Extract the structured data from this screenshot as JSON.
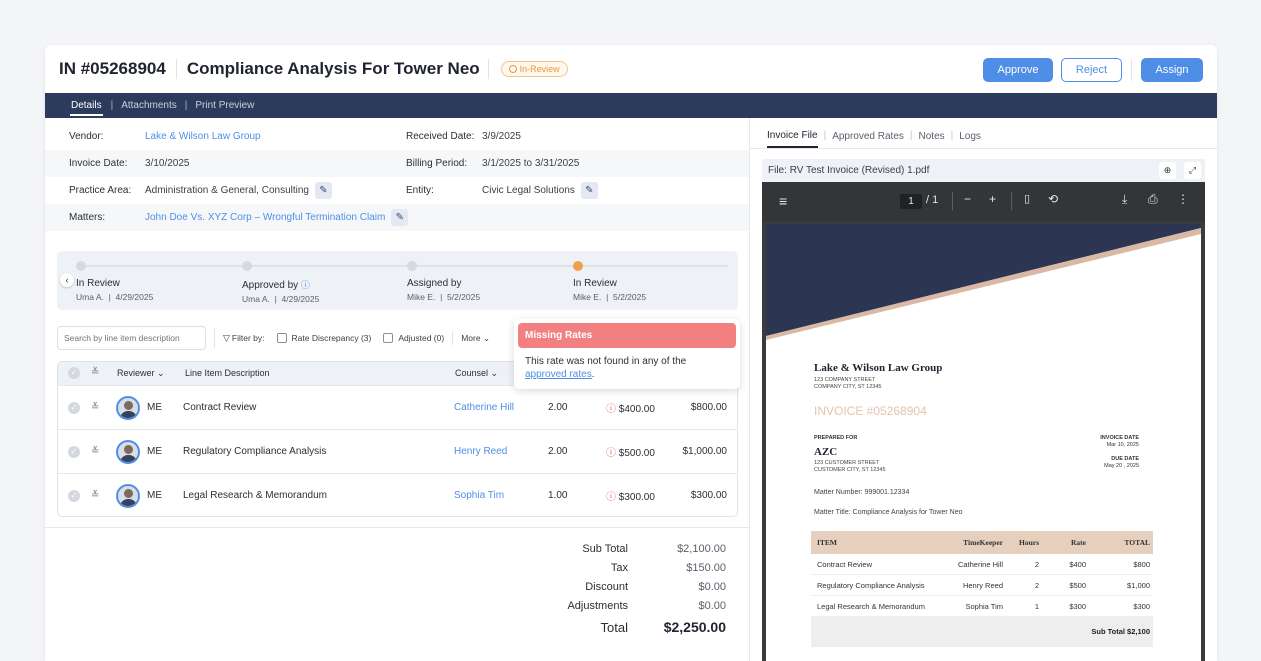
{
  "header": {
    "invoice_id": "IN #05268904",
    "title": "Compliance Analysis For Tower Neo",
    "status": "In-Review",
    "approve": "Approve",
    "reject": "Reject",
    "assign": "Assign"
  },
  "tabs": [
    "Details",
    "Attachments",
    "Print Preview"
  ],
  "details": {
    "vendor_label": "Vendor:",
    "vendor": "Lake & Wilson Law Group",
    "received_label": "Received Date:",
    "received": "3/9/2025",
    "invoice_date_label": "Invoice Date:",
    "invoice_date": "3/10/2025",
    "billing_label": "Billing Period:",
    "billing": "3/1/2025 to 3/31/2025",
    "practice_label": "Practice Area:",
    "practice": "Administration & General, Consulting",
    "entity_label": "Entity:",
    "entity": "Civic Legal Solutions",
    "matters_label": "Matters:",
    "matters": "John Doe Vs. XYZ Corp – Wrongful Termination Claim"
  },
  "timeline": [
    {
      "title": "In Review",
      "who": "Uma A.",
      "date": "4/29/2025"
    },
    {
      "title": "Approved by",
      "who": "Uma A.",
      "date": "4/29/2025"
    },
    {
      "title": "Assigned by",
      "who": "Mike E.",
      "date": "5/2/2025"
    },
    {
      "title": "In Review",
      "who": "Mike E.",
      "date": "5/2/2025"
    }
  ],
  "filters": {
    "search_placeholder": "Search by line item description",
    "filter_by": "Filter by:",
    "rate_discrepancy": "Rate Discrepancy (3)",
    "adjusted": "Adjusted (0)",
    "more": "More"
  },
  "table": {
    "reviewer": "Reviewer",
    "description": "Line Item Description",
    "counsel": "Counsel",
    "rows": [
      {
        "reviewer": "ME",
        "description": "Contract Review",
        "counsel": "Catherine Hill",
        "hours": "2.00",
        "rate": "$400.00",
        "total": "$800.00"
      },
      {
        "reviewer": "ME",
        "description": "Regulatory Compliance Analysis",
        "counsel": "Henry Reed",
        "hours": "2.00",
        "rate": "$500.00",
        "total": "$1,000.00"
      },
      {
        "reviewer": "ME",
        "description": "Legal Research & Memorandum",
        "counsel": "Sophia Tim",
        "hours": "1.00",
        "rate": "$300.00",
        "total": "$300.00"
      }
    ]
  },
  "tooltip": {
    "title": "Missing Rates",
    "text": "This rate was not found in any of the",
    "link": "approved rates",
    "tail": "."
  },
  "totals": {
    "subtotal_label": "Sub Total",
    "subtotal": "$2,100.00",
    "tax_label": "Tax",
    "tax": "$150.00",
    "discount_label": "Discount",
    "discount": "$0.00",
    "adjustments_label": "Adjustments",
    "adjustments": "$0.00",
    "total_label": "Total",
    "total": "$2,250.00"
  },
  "right_tabs": [
    "Invoice File",
    "Approved Rates",
    "Notes",
    "Logs"
  ],
  "file": {
    "label": "File:",
    "name": "RV Test Invoice (Revised) 1.pdf"
  },
  "viewer": {
    "page": "1",
    "of": "/ 1"
  },
  "pdf": {
    "firm": "Lake & Wilson Law Group",
    "street": "123 COMPANY STREET",
    "city": "COMPANY CITY, ST 12345",
    "invoice": "INVOICE #05268904",
    "prepared_for": "PREPARED FOR",
    "client": "AZC",
    "client_street": "123 CUSTOMER STREET",
    "client_city": "CUSTOMER CITY, ST 12345",
    "invoice_date_label": "INVOICE DATE",
    "invoice_date": "Mar 10, 2025",
    "due_date_label": "DUE DATE",
    "due_date": "May 20 , 2025",
    "matter_number": "Matter Number: 999001.12334",
    "matter_title": "Matter Title: Compliance Analysis for Tower Neo",
    "cols": [
      "ITEM",
      "TimeKeeper",
      "Hours",
      "Rate",
      "TOTAL"
    ],
    "rows": [
      [
        "Contract Review",
        "Catherine Hill",
        "2",
        "$400",
        "$800"
      ],
      [
        "Regulatory Compliance Analysis",
        "Henry Reed",
        "2",
        "$500",
        "$1,000"
      ],
      [
        "Legal Research & Memorandum",
        "Sophia Tim",
        "1",
        "$300",
        "$300"
      ]
    ],
    "subtotal": "Sub Total  $2,100"
  },
  "colors": {
    "accent": "#4f8ee6",
    "navy": "#2c3a5c",
    "warning": "#e65555",
    "status": "#e89a3c"
  }
}
